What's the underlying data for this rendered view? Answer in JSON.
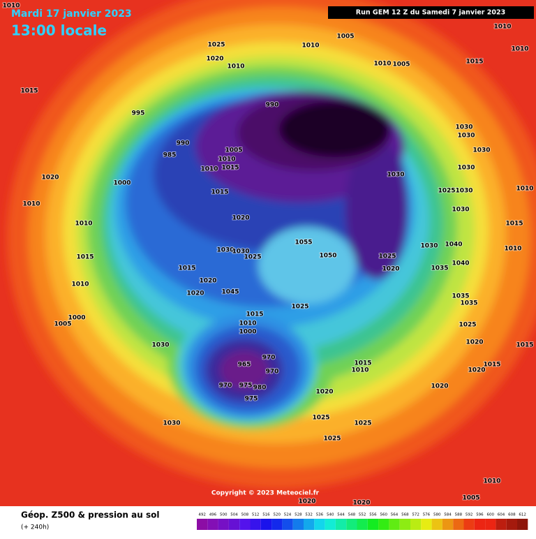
{
  "header": {
    "valid_date": "Mardi 17 janvier 2023",
    "valid_time": "13:00 locale",
    "run": "Run GEM 12 Z du Samedi 7 janvier 2023"
  },
  "footer": {
    "copyright": "Copyright © 2023 Meteociel.fr",
    "product": "Géop. Z500 & pression au sol",
    "range": "(+ 240h)"
  },
  "pressure_labels": [
    "1010",
    "1010",
    "1010",
    "1005",
    "1010",
    "1025",
    "1020",
    "1010",
    "1010",
    "1005",
    "1015",
    "1015",
    "995",
    "990",
    "990",
    "985",
    "1005",
    "1010",
    "1010",
    "1015",
    "1030",
    "1030",
    "1030",
    "1030",
    "1030",
    "1020",
    "1000",
    "1015",
    "1025",
    "1030",
    "1010",
    "1010",
    "1020",
    "1030",
    "1010",
    "1015",
    "1055",
    "1030",
    "1040",
    "1030",
    "1030",
    "1025",
    "1050",
    "1025",
    "1015",
    "1010",
    "1040",
    "1020",
    "1035",
    "1015",
    "1020",
    "1010",
    "1045",
    "1020",
    "1035",
    "1035",
    "1025",
    "1015",
    "1000",
    "1005",
    "1010",
    "1000",
    "1025",
    "1030",
    "1020",
    "1015",
    "970",
    "965",
    "970",
    "1015",
    "1010",
    "1015",
    "1020",
    "970",
    "975",
    "980",
    "1020",
    "1020",
    "975",
    "1025",
    "1025",
    "1030",
    "1025",
    "1010",
    "1005",
    "1020",
    "1020"
  ],
  "legend": {
    "values": [
      492,
      496,
      500,
      504,
      508,
      512,
      516,
      520,
      524,
      528,
      532,
      536,
      540,
      544,
      548,
      552,
      556,
      560,
      564,
      568,
      572,
      576,
      580,
      584,
      588,
      592,
      596,
      600,
      604,
      608,
      612
    ]
  }
}
